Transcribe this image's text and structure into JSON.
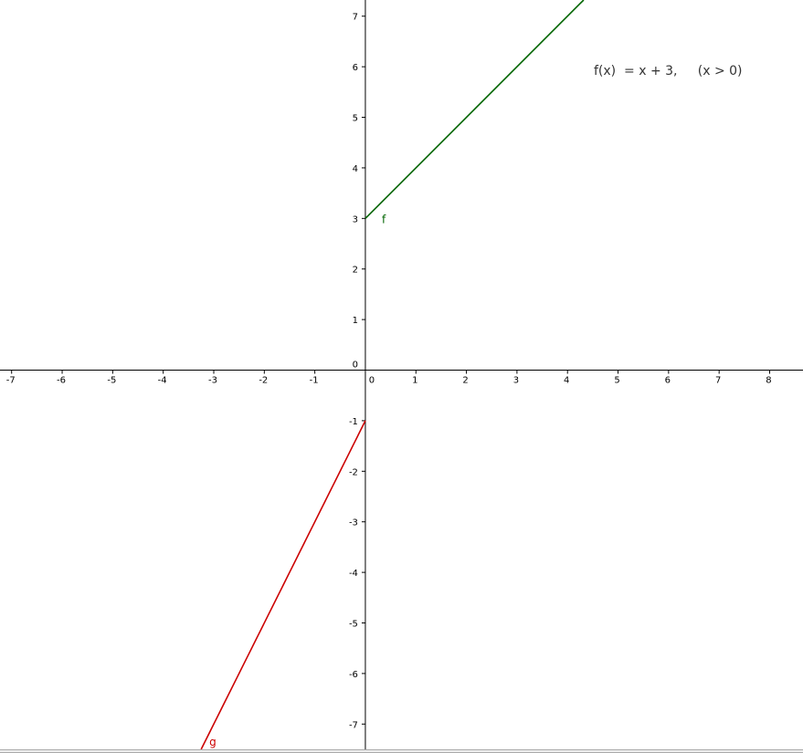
{
  "chart_data": {
    "type": "line",
    "title": "",
    "xlabel": "",
    "ylabel": "",
    "xlim": [
      -7.23,
      8.66
    ],
    "ylim": [
      -7.5,
      7.32
    ],
    "grid": false,
    "x_ticks": [
      -7,
      -6,
      -5,
      -4,
      -3,
      -2,
      -1,
      0,
      1,
      2,
      3,
      4,
      5,
      6,
      7,
      8
    ],
    "y_ticks": [
      -7,
      -6,
      -5,
      -4,
      -3,
      -2,
      -1,
      0,
      1,
      2,
      3,
      4,
      5,
      6,
      7
    ],
    "series": [
      {
        "name": "f",
        "color": "#006400",
        "slope": 1,
        "intercept": 3,
        "domain": [
          0,
          8.66
        ]
      },
      {
        "name": "g",
        "color": "#cc0000",
        "slope": 2,
        "intercept": -1,
        "domain": [
          -7.23,
          0
        ]
      }
    ],
    "annotation": "f(x)  = x + 3,     (x > 0)"
  }
}
